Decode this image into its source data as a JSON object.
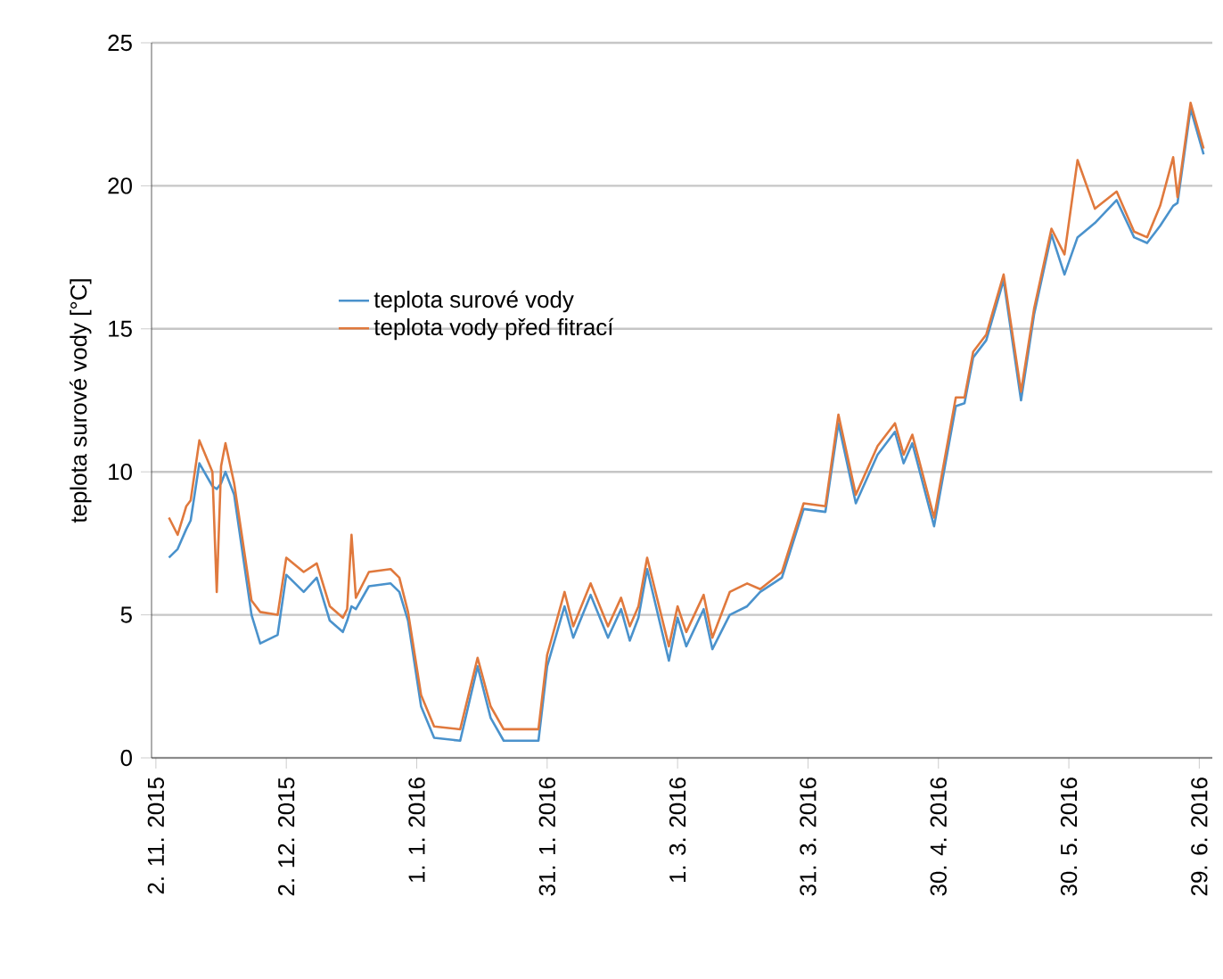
{
  "chart_data": {
    "type": "line",
    "ylabel": "teplota surové vody [°C]",
    "x": [
      "2015-11-05",
      "2015-11-07",
      "2015-11-09",
      "2015-11-10",
      "2015-11-12",
      "2015-11-15",
      "2015-11-16",
      "2015-11-17",
      "2015-11-18",
      "2015-11-20",
      "2015-11-24",
      "2015-11-26",
      "2015-11-30",
      "2015-12-02",
      "2015-12-06",
      "2015-12-09",
      "2015-12-12",
      "2015-12-15",
      "2015-12-16",
      "2015-12-17",
      "2015-12-18",
      "2015-12-21",
      "2015-12-26",
      "2015-12-28",
      "2015-12-30",
      "2016-01-02",
      "2016-01-05",
      "2016-01-11",
      "2016-01-15",
      "2016-01-18",
      "2016-01-21",
      "2016-01-29",
      "2016-01-31",
      "2016-02-04",
      "2016-02-06",
      "2016-02-10",
      "2016-02-14",
      "2016-02-17",
      "2016-02-19",
      "2016-02-21",
      "2016-02-23",
      "2016-02-28",
      "2016-03-01",
      "2016-03-03",
      "2016-03-07",
      "2016-03-09",
      "2016-03-13",
      "2016-03-17",
      "2016-03-20",
      "2016-03-25",
      "2016-03-30",
      "2016-04-04",
      "2016-04-07",
      "2016-04-11",
      "2016-04-16",
      "2016-04-20",
      "2016-04-22",
      "2016-04-24",
      "2016-04-29",
      "2016-05-04",
      "2016-05-06",
      "2016-05-08",
      "2016-05-11",
      "2016-05-15",
      "2016-05-19",
      "2016-05-22",
      "2016-05-26",
      "2016-05-29",
      "2016-06-01",
      "2016-06-05",
      "2016-06-10",
      "2016-06-14",
      "2016-06-17",
      "2016-06-20",
      "2016-06-23",
      "2016-06-24",
      "2016-06-27",
      "2016-06-30"
    ],
    "series": [
      {
        "name": "teplota surové vody",
        "color": "#4a92cc",
        "values": [
          7.0,
          7.3,
          8.0,
          8.3,
          10.3,
          9.5,
          9.4,
          9.6,
          10.0,
          9.2,
          5.0,
          4.0,
          4.3,
          6.4,
          5.8,
          6.3,
          4.8,
          4.4,
          4.8,
          5.3,
          5.2,
          6.0,
          6.1,
          5.8,
          4.8,
          1.8,
          0.7,
          0.6,
          3.2,
          1.4,
          0.6,
          0.6,
          3.2,
          5.3,
          4.2,
          5.7,
          4.2,
          5.2,
          4.1,
          4.9,
          6.6,
          3.4,
          4.9,
          3.9,
          5.2,
          3.8,
          5.0,
          5.3,
          5.8,
          6.3,
          8.7,
          8.6,
          11.7,
          8.9,
          10.6,
          11.4,
          10.3,
          11.0,
          8.1,
          12.3,
          12.4,
          14.0,
          14.6,
          16.7,
          12.5,
          15.5,
          18.3,
          16.9,
          18.2,
          18.7,
          19.5,
          18.2,
          18.0,
          18.6,
          19.3,
          19.4,
          22.7,
          21.1
        ]
      },
      {
        "name": "teplota vody před fitrací",
        "color": "#e0793d",
        "values": [
          8.4,
          7.8,
          8.8,
          9.0,
          11.1,
          10.0,
          5.8,
          10.2,
          11.0,
          9.6,
          5.5,
          5.1,
          5.0,
          7.0,
          6.5,
          6.8,
          5.3,
          4.9,
          5.2,
          7.8,
          5.6,
          6.5,
          6.6,
          6.3,
          5.1,
          2.2,
          1.1,
          1.0,
          3.5,
          1.8,
          1.0,
          1.0,
          3.6,
          5.8,
          4.6,
          6.1,
          4.6,
          5.6,
          4.6,
          5.3,
          7.0,
          3.9,
          5.3,
          4.4,
          5.7,
          4.2,
          5.8,
          6.1,
          5.9,
          6.5,
          8.9,
          8.8,
          12.0,
          9.2,
          10.9,
          11.7,
          10.6,
          11.3,
          8.4,
          12.6,
          12.6,
          14.2,
          14.8,
          16.9,
          12.8,
          15.7,
          18.5,
          17.6,
          20.9,
          19.2,
          19.8,
          18.4,
          18.2,
          19.3,
          21.0,
          19.6,
          22.9,
          21.3
        ]
      }
    ],
    "xlim": [
      "2015-11-01",
      "2016-07-02"
    ],
    "xticks": [
      {
        "value": "2015-11-02",
        "label": "2. 11. 2015"
      },
      {
        "value": "2015-12-02",
        "label": "2. 12. 2015"
      },
      {
        "value": "2016-01-01",
        "label": "1. 1. 2016"
      },
      {
        "value": "2016-01-31",
        "label": "31. 1. 2016"
      },
      {
        "value": "2016-03-01",
        "label": "1. 3. 2016"
      },
      {
        "value": "2016-03-31",
        "label": "31. 3. 2016"
      },
      {
        "value": "2016-04-30",
        "label": "30. 4. 2016"
      },
      {
        "value": "2016-05-30",
        "label": "30. 5. 2016"
      },
      {
        "value": "2016-06-29",
        "label": "29. 6. 2016"
      }
    ],
    "ylim": [
      0,
      25
    ],
    "yticks": [
      0,
      5,
      10,
      15,
      20,
      25
    ],
    "grid": "y",
    "legend": "left"
  }
}
